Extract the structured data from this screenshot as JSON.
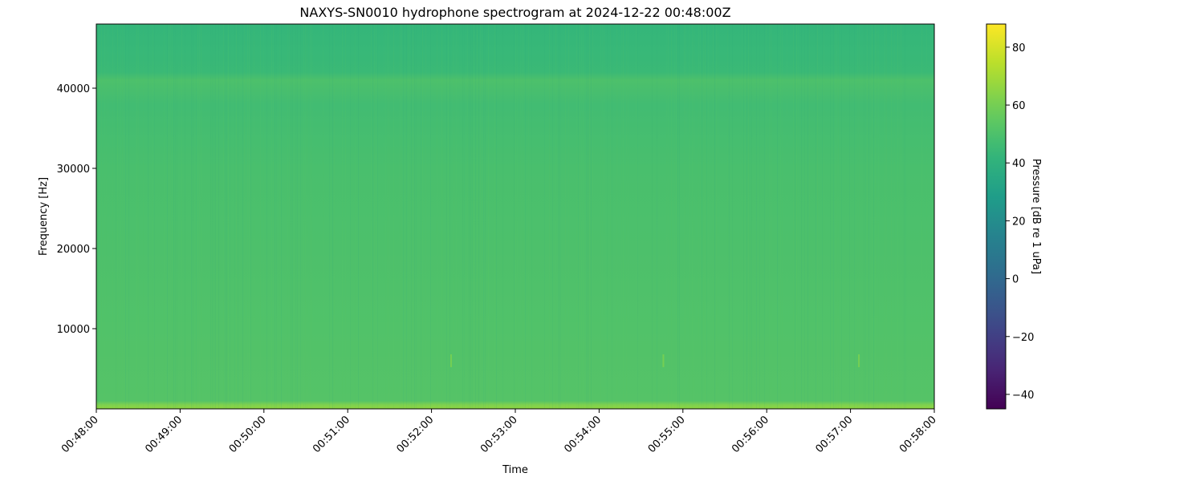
{
  "chart_data": {
    "type": "heatmap",
    "title": "NAXYS-SN0010 hydrophone spectrogram at 2024-12-22 00:48:00Z",
    "xlabel": "Time",
    "ylabel": "Frequency [Hz]",
    "x_ticks": [
      "00:48:00",
      "00:49:00",
      "00:50:00",
      "00:51:00",
      "00:52:00",
      "00:53:00",
      "00:54:00",
      "00:55:00",
      "00:56:00",
      "00:57:00",
      "00:58:00"
    ],
    "xlim_minutes": [
      "00:48:00",
      "00:58:00"
    ],
    "y_ticks": [
      10000,
      20000,
      30000,
      40000
    ],
    "ylim": [
      0,
      48000
    ],
    "colormap": "viridis",
    "colorbar": {
      "label": "Pressure [dB re 1 uPa]",
      "ticks": [
        -40,
        -20,
        0,
        20,
        40,
        60,
        80
      ],
      "range": [
        -45,
        88
      ]
    },
    "frequency_profile_db": [
      {
        "freq": 0,
        "db": 66
      },
      {
        "freq": 500,
        "db": 62
      },
      {
        "freq": 1000,
        "db": 52
      },
      {
        "freq": 10000,
        "db": 51
      },
      {
        "freq": 20000,
        "db": 50
      },
      {
        "freq": 30000,
        "db": 49
      },
      {
        "freq": 38000,
        "db": 47
      },
      {
        "freq": 41000,
        "db": 50
      },
      {
        "freq": 42000,
        "db": 45
      },
      {
        "freq": 48000,
        "db": 43
      }
    ],
    "transients": [
      {
        "time": "00:52:14",
        "freq": 6000,
        "db": 60
      },
      {
        "time": "00:54:46",
        "freq": 6000,
        "db": 60
      },
      {
        "time": "00:57:06",
        "freq": 6000,
        "db": 60
      }
    ]
  }
}
